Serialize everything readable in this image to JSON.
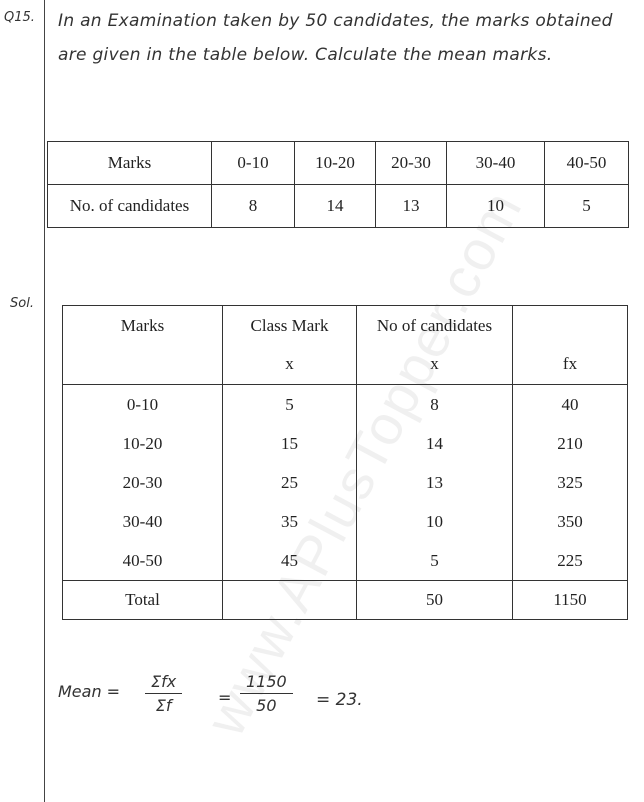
{
  "question": {
    "number": "Q15.",
    "text": "In an Examination taken by 50 candidates, the marks obtained are given in the table below. Calculate the mean marks."
  },
  "given_table": {
    "rows": [
      [
        "Marks",
        "0-10",
        "10-20",
        "20-30",
        "30-40",
        "40-50"
      ],
      [
        "No. of candidates",
        "8",
        "14",
        "13",
        "10",
        "5"
      ]
    ]
  },
  "solution": {
    "label": "Sol.",
    "table": {
      "headers": [
        [
          "Marks",
          ""
        ],
        [
          "Class Mark",
          "x"
        ],
        [
          "No of candidates",
          "x"
        ],
        [
          "",
          "fx"
        ]
      ],
      "rows": [
        [
          "0-10",
          "5",
          "8",
          "40"
        ],
        [
          "10-20",
          "15",
          "14",
          "210"
        ],
        [
          "20-30",
          "25",
          "13",
          "325"
        ],
        [
          "30-40",
          "35",
          "10",
          "350"
        ],
        [
          "40-50",
          "45",
          "5",
          "225"
        ]
      ],
      "total": [
        "Total",
        "",
        "50",
        "1150"
      ]
    },
    "mean": {
      "label": "Mean =",
      "formula_num": "Σfx",
      "formula_den": "Σf",
      "eq": "=",
      "value_num": "1150",
      "value_den": "50",
      "result": "= 23."
    }
  },
  "watermark": "www.APlusTopper.com"
}
